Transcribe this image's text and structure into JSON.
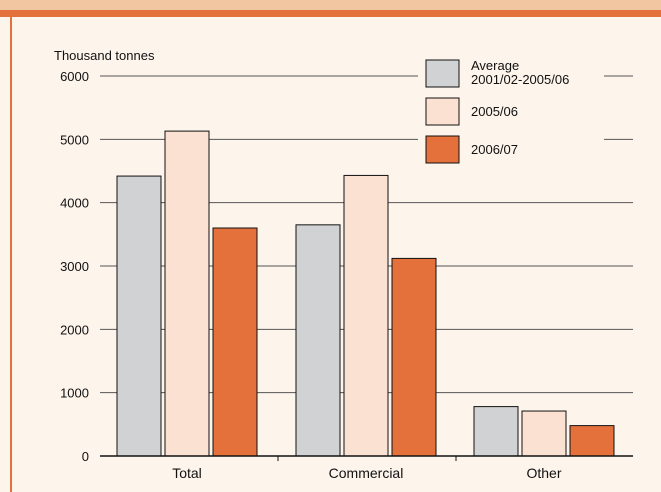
{
  "chart_data": {
    "type": "bar",
    "ylabel": "Thousand tonnes",
    "ylim": [
      0,
      6000
    ],
    "yticks": [
      0,
      1000,
      2000,
      3000,
      4000,
      5000,
      6000
    ],
    "categories": [
      "Total",
      "Commercial",
      "Other"
    ],
    "series": [
      {
        "name_lines": [
          "Average",
          "2001/02-2005/06"
        ],
        "color": "#d1d2d3",
        "values": [
          4420,
          3650,
          780
        ]
      },
      {
        "name_lines": [
          "2005/06"
        ],
        "color": "#fbe1d2",
        "values": [
          5130,
          4430,
          710
        ]
      },
      {
        "name_lines": [
          "2006/07"
        ],
        "color": "#e4703c",
        "values": [
          3600,
          3120,
          480
        ]
      }
    ],
    "grid": true,
    "legend_position": "top-right",
    "colors": {
      "axis": "#111111",
      "grid": "#555555",
      "bar_stroke": "#111111",
      "accent": "#e4703c",
      "accent_light": "#f3c6a2",
      "background": "#fdf4ec"
    }
  }
}
